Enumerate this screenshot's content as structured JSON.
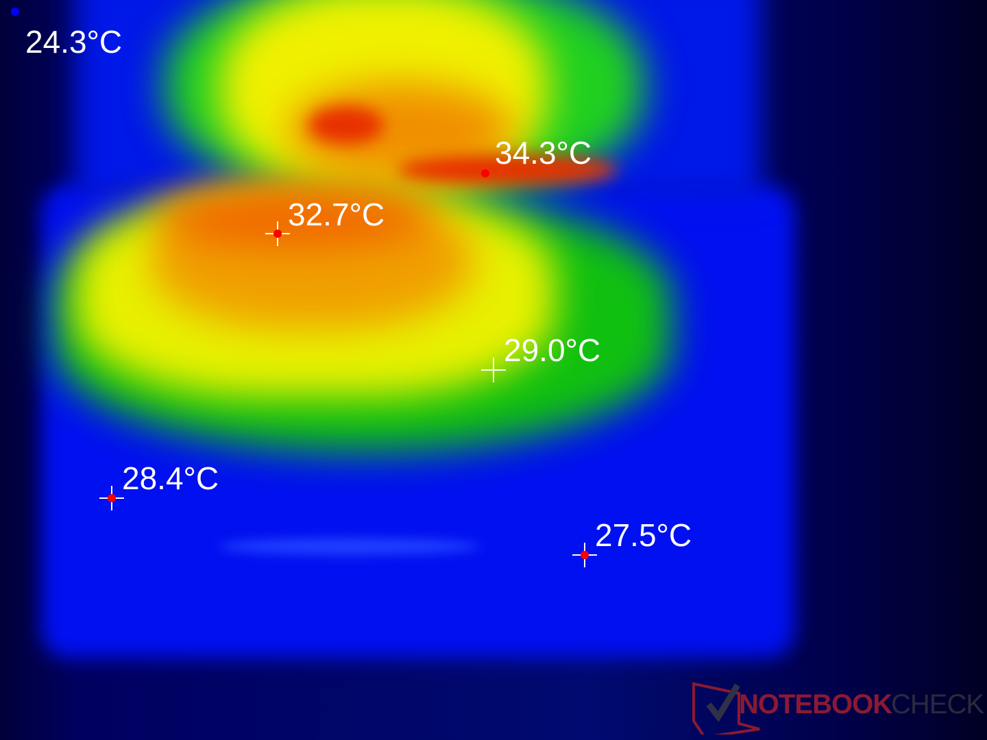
{
  "image": "thermal image of laptop surface temperatures",
  "palette": {
    "cold": "#0000ff",
    "cool": "#00c000",
    "warm": "#ffff00",
    "hot": "#ff4000"
  },
  "readings": [
    {
      "label": "24.3°C",
      "marker": "dot",
      "marker_color": "#0000ff"
    },
    {
      "label": "34.3°C",
      "marker": "dot",
      "marker_color": "#ff0000"
    },
    {
      "label": "32.7°C",
      "marker": "crosshair-dot",
      "marker_color": "#ff0000"
    },
    {
      "label": "29.0°C",
      "marker": "crosshair",
      "marker_color": "#ffffff"
    },
    {
      "label": "28.4°C",
      "marker": "crosshair-dot",
      "marker_color": "#ff0000"
    },
    {
      "label": "27.5°C",
      "marker": "crosshair-dot",
      "marker_color": "#ff0000"
    }
  ],
  "watermark": {
    "part1": "NOTEBOOK",
    "part2": "CHECK"
  }
}
